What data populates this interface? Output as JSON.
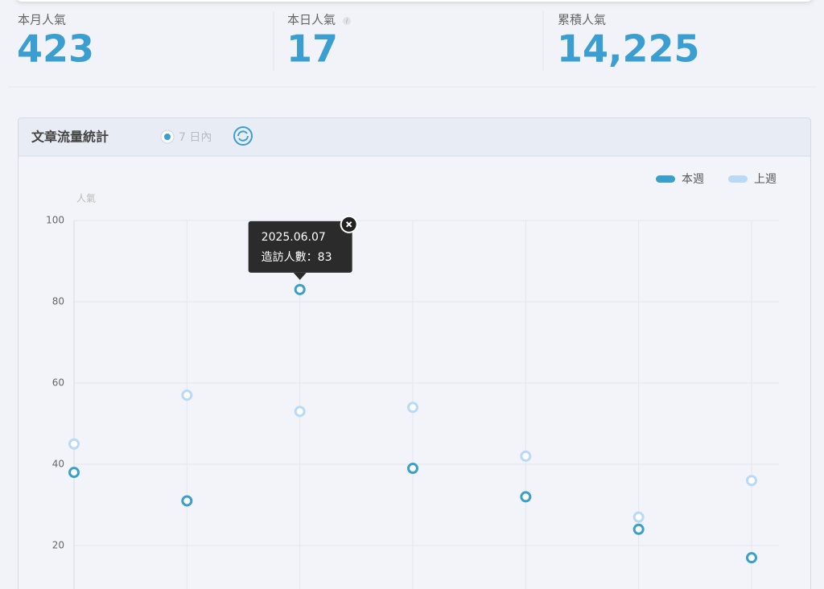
{
  "stats": [
    {
      "label": "本月人氣",
      "value": "423"
    },
    {
      "label": "本日人氣",
      "value": "17"
    },
    {
      "label": "累積人氣",
      "value": "14,225"
    }
  ],
  "panel": {
    "title": "文章流量統計",
    "range": "7 日內"
  },
  "chart_data": {
    "type": "line",
    "y_label": "人氣",
    "categories": [
      null,
      null,
      null,
      null,
      null,
      null,
      null
    ],
    "series": [
      {
        "name": "本週",
        "color": "#3a9fca",
        "values": [
          38,
          31,
          83,
          39,
          32,
          24,
          17
        ]
      },
      {
        "name": "上週",
        "color": "#b9d9f5",
        "values": [
          45,
          57,
          53,
          54,
          42,
          27,
          36
        ]
      }
    ],
    "ylim": [
      0,
      100
    ],
    "yticks": [
      20,
      40,
      60,
      80,
      100
    ],
    "grid": true,
    "legend": "top-right",
    "tooltip": {
      "title": "2025.06.07",
      "label": "造訪人數："
    }
  }
}
